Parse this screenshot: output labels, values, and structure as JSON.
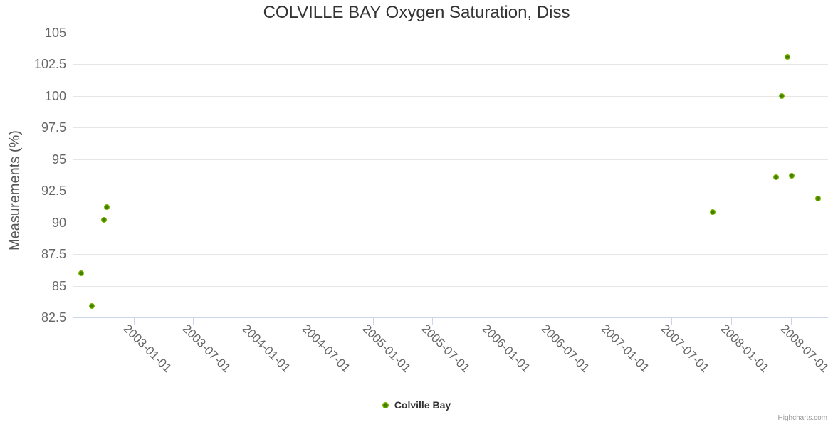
{
  "chart_data": {
    "type": "scatter",
    "title": "COLVILLE BAY Oxygen Saturation, Diss",
    "xlabel": "",
    "ylabel": "Measurements (%)",
    "ylim": [
      82.5,
      105
    ],
    "y_ticks": [
      105,
      102.5,
      100,
      97.5,
      95,
      92.5,
      90,
      87.5,
      85,
      82.5
    ],
    "xlim": [
      "2002-07-01",
      "2008-10-22"
    ],
    "x_ticks": [
      "2003-01-01",
      "2003-07-01",
      "2004-01-01",
      "2004-07-01",
      "2005-01-01",
      "2005-07-01",
      "2006-01-01",
      "2006-07-01",
      "2007-01-01",
      "2007-07-01",
      "2008-01-01",
      "2008-07-01"
    ],
    "grid": "horizontal",
    "legend_position": "bottom-center",
    "series": [
      {
        "name": "Colville Bay",
        "marker_color_outer": "#8bc400",
        "marker_color_inner": "#417f00",
        "points": [
          {
            "date": "2002-07-24",
            "value": 86.0
          },
          {
            "date": "2002-08-26",
            "value": 83.4
          },
          {
            "date": "2002-10-02",
            "value": 90.2
          },
          {
            "date": "2002-10-11",
            "value": 91.2
          },
          {
            "date": "2007-11-05",
            "value": 90.8
          },
          {
            "date": "2008-05-17",
            "value": 93.6
          },
          {
            "date": "2008-06-02",
            "value": 100
          },
          {
            "date": "2008-06-21",
            "value": 103.1
          },
          {
            "date": "2008-07-04",
            "value": 93.7
          },
          {
            "date": "2008-09-21",
            "value": 91.9
          }
        ]
      }
    ],
    "credits": "Highcharts.com"
  }
}
